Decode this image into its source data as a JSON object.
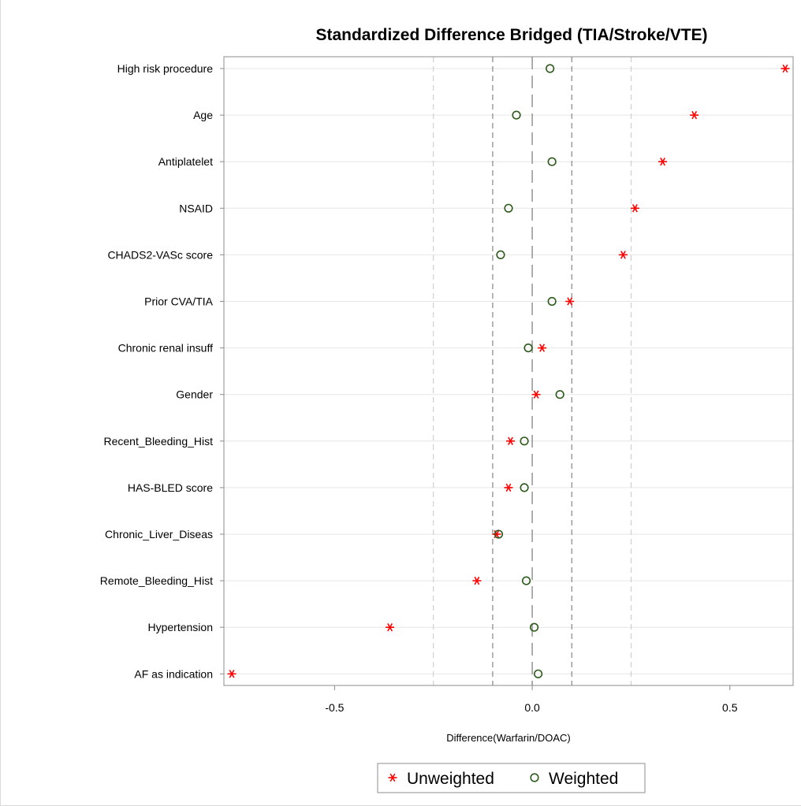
{
  "chart_data": {
    "type": "scatter",
    "title": "Standardized Difference  Bridged (TIA/Stroke/VTE)",
    "xlabel": "Difference(Warfarin/DOAC)",
    "ylabel": "",
    "xlim": [
      -0.78,
      0.66
    ],
    "xticks": [
      -0.5,
      0.0,
      0.5
    ],
    "xtick_labels": [
      "-0.5",
      "0.0",
      "0.5"
    ],
    "reference_lines": {
      "center": 0.0,
      "inner": [
        -0.1,
        0.1
      ],
      "outer": [
        -0.25,
        0.25
      ]
    },
    "grid": true,
    "legend_position": "bottom",
    "categories": [
      "High risk procedure",
      "Age",
      "Antiplatelet",
      "NSAID",
      "CHADS2-VASc score",
      "Prior CVA/TIA",
      "Chronic renal insuff",
      "Gender",
      "Recent_Bleeding_Hist",
      "HAS-BLED score",
      "Chronic_Liver_Diseas",
      "Remote_Bleeding_Hist",
      "Hypertension",
      "AF as indication"
    ],
    "series": [
      {
        "name": "Unweighted",
        "marker": "asterisk",
        "color": "#ff0000",
        "values": [
          0.64,
          0.41,
          0.33,
          0.26,
          0.23,
          0.095,
          0.025,
          0.01,
          -0.055,
          -0.06,
          -0.09,
          -0.14,
          -0.36,
          -0.76
        ]
      },
      {
        "name": "Weighted",
        "marker": "circle",
        "color": "#2d5a1b",
        "values": [
          0.045,
          -0.04,
          0.05,
          -0.06,
          -0.08,
          0.05,
          -0.01,
          0.07,
          -0.02,
          -0.02,
          -0.085,
          -0.015,
          0.005,
          0.015
        ]
      }
    ]
  }
}
